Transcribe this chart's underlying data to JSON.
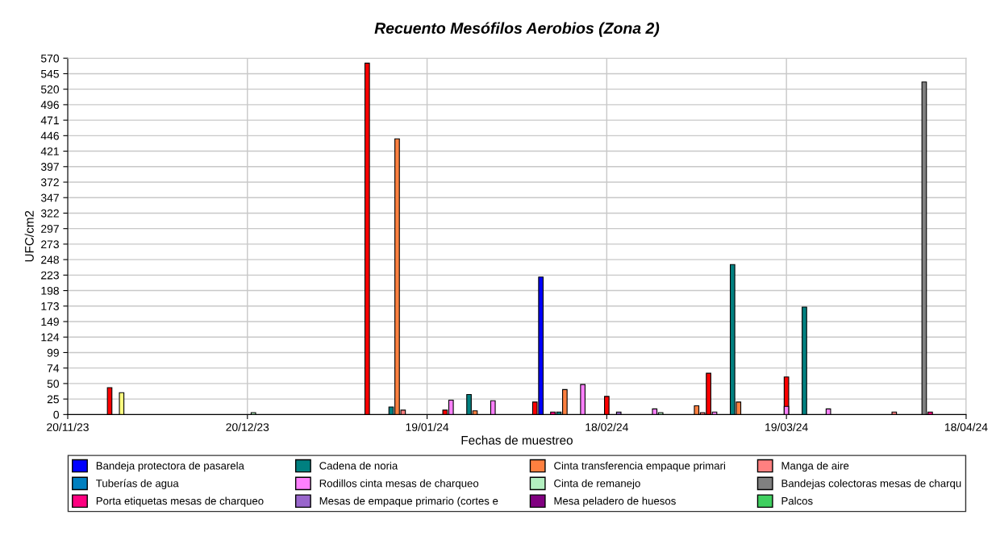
{
  "chart_data": {
    "type": "bar",
    "title": "Recuento Mesófilos Aerobios (Zona 2)",
    "xlabel": "Fechas de muestreo",
    "ylabel": "UFC/cm2",
    "series": [
      {
        "color": "#ff0000",
        "x": [
          "2023-11-27",
          "2024-01-09",
          "2024-01-22",
          "2024-02-06",
          "2024-02-18",
          "2024-03-06",
          "2024-03-19"
        ],
        "values": [
          43,
          562,
          7,
          20,
          29,
          66,
          60
        ]
      },
      {
        "name": "Bandeja protectora de pasarela",
        "color": "#0000ff",
        "x": [
          "2024-02-07"
        ],
        "values": [
          220
        ]
      },
      {
        "color": "#ffff80",
        "x": [
          "2023-11-29"
        ],
        "values": [
          35
        ]
      },
      {
        "name": "Cadena de noria",
        "color": "#008080",
        "x": [
          "2024-01-13",
          "2024-01-26",
          "2024-02-10",
          "2024-03-10",
          "2024-03-22"
        ],
        "values": [
          12,
          32,
          4,
          240,
          172
        ]
      },
      {
        "name": "Cinta transferencia empaque primari",
        "color": "#ff8040",
        "x": [
          "2024-01-14",
          "2024-01-27",
          "2024-02-11",
          "2024-03-04",
          "2024-03-11"
        ],
        "values": [
          441,
          6,
          40,
          14,
          20
        ]
      },
      {
        "name": "Manga de aire",
        "color": "#ff8080",
        "x": [
          "2024-01-15",
          "2024-03-05",
          "2024-04-06"
        ],
        "values": [
          7,
          3,
          4
        ]
      },
      {
        "name": "Tuberías de agua",
        "color": "#0080c0"
      },
      {
        "name": "Rodillos cinta mesas de charqueo",
        "color": "#ff80ff",
        "x": [
          "2024-01-23",
          "2024-01-30",
          "2024-02-14",
          "2024-02-26",
          "2024-03-07",
          "2024-03-19",
          "2024-03-26"
        ],
        "values": [
          23,
          22,
          48,
          9,
          4,
          13,
          9
        ]
      },
      {
        "name": "Cinta de remanejo",
        "color": "#b3f0c0",
        "x": [
          "2023-12-21",
          "2024-02-27"
        ],
        "values": [
          3,
          3
        ]
      },
      {
        "name": "Bandejas colectoras mesas de charqu",
        "color": "#808080",
        "x": [
          "2024-04-11"
        ],
        "values": [
          532
        ]
      },
      {
        "name": "Porta etiquetas mesas de charqueo",
        "color": "#ff0080",
        "x": [
          "2024-02-09",
          "2024-04-12"
        ],
        "values": [
          4,
          4
        ]
      },
      {
        "name": "Mesas de empaque primario (cortes e",
        "color": "#9966cc",
        "x": [
          "2024-02-20"
        ],
        "values": [
          4
        ]
      },
      {
        "name": "Mesa peladero de huesos",
        "color": "#800080"
      },
      {
        "name": "Palcos",
        "color": "#40d060"
      }
    ],
    "xlim": [
      "2023-11-20",
      "2024-04-18"
    ],
    "xticks": [
      {
        "value": "2023-11-20",
        "label": "20/11/23"
      },
      {
        "value": "2023-12-20",
        "label": "20/12/23"
      },
      {
        "value": "2024-01-19",
        "label": "19/01/24"
      },
      {
        "value": "2024-02-18",
        "label": "18/02/24"
      },
      {
        "value": "2024-03-19",
        "label": "19/03/24"
      },
      {
        "value": "2024-04-18",
        "label": "18/04/24"
      }
    ],
    "ylim": [
      0,
      570
    ],
    "yticks": [
      0,
      {
        "value": 24.78,
        "label": "25"
      },
      {
        "value": 49.57,
        "label": "50"
      },
      {
        "value": 74.35,
        "label": "74"
      },
      {
        "value": 99.13,
        "label": "99"
      },
      {
        "value": 123.91,
        "label": "124"
      },
      {
        "value": 148.7,
        "label": "149"
      },
      {
        "value": 173.48,
        "label": "173"
      },
      {
        "value": 198.26,
        "label": "198"
      },
      {
        "value": 223.04,
        "label": "223"
      },
      {
        "value": 247.83,
        "label": "248"
      },
      {
        "value": 272.61,
        "label": "273"
      },
      {
        "value": 297.39,
        "label": "297"
      },
      {
        "value": 322.17,
        "label": "322"
      },
      {
        "value": 346.96,
        "label": "347"
      },
      {
        "value": 371.74,
        "label": "372"
      },
      {
        "value": 396.52,
        "label": "397"
      },
      {
        "value": 421.3,
        "label": "421"
      },
      {
        "value": 446.09,
        "label": "446"
      },
      {
        "value": 470.87,
        "label": "471"
      },
      {
        "value": 495.65,
        "label": "496"
      },
      {
        "value": 520.43,
        "label": "520"
      },
      {
        "value": 545.22,
        "label": "545"
      },
      570
    ],
    "grid": true,
    "legend": "bottom"
  }
}
